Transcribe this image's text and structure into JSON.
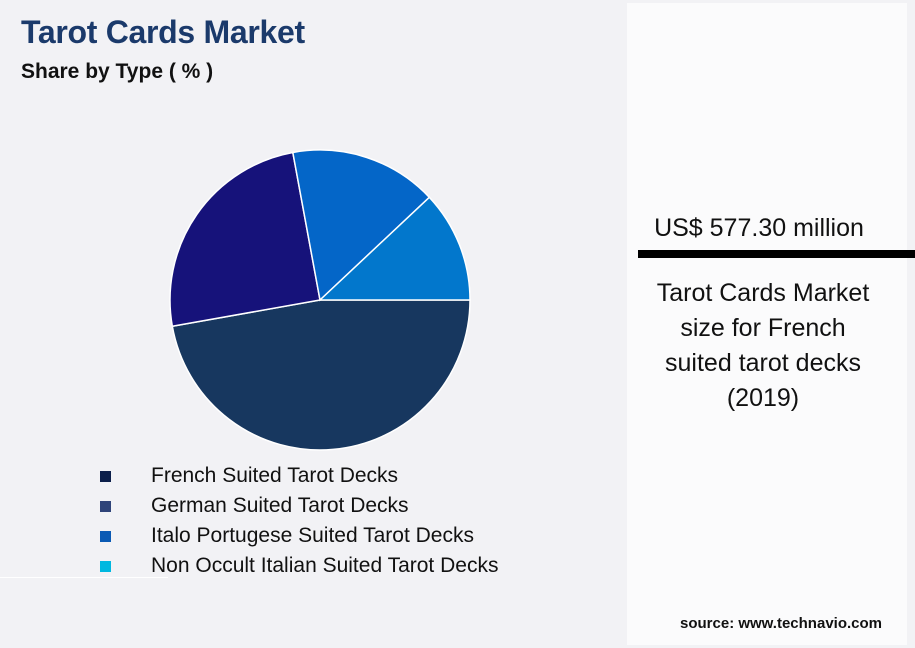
{
  "header": {
    "title": "Tarot Cards Market",
    "subtitle": "Share by Type ( % )"
  },
  "legend": {
    "items": [
      {
        "label": "French Suited Tarot Decks",
        "color": "#0c1f4a"
      },
      {
        "label": "German Suited Tarot Decks",
        "color": "#2f4479"
      },
      {
        "label": "Italo Portugese Suited Tarot Decks",
        "color": "#0a5ab4"
      },
      {
        "label": "Non Occult Italian Suited Tarot Decks",
        "color": "#00b8e0"
      }
    ]
  },
  "kpi": {
    "value": "US$ 577.30 million",
    "description": "Tarot Cards Market\nsize for French\nsuited tarot decks\n(2019)"
  },
  "footer": {
    "source": "source: www.technavio.com"
  },
  "chart_data": {
    "type": "pie",
    "title": "Tarot Cards Market",
    "subtitle": "Share by Type ( % )",
    "categories": [
      "French Suited Tarot Decks",
      "German Suited Tarot Decks",
      "Italo Portugese Suited Tarot Decks",
      "Non Occult Italian Suited Tarot Decks"
    ],
    "values": [
      47.2,
      24.9,
      15.9,
      12.0
    ],
    "slice_colors": [
      "#17375f",
      "#16127a",
      "#0466c8",
      "#0277cc"
    ],
    "legend_colors": [
      "#0c1f4a",
      "#2f4479",
      "#0a5ab4",
      "#00b8e0"
    ],
    "start_angle_deg": 0,
    "direction": "clockwise",
    "legend_position": "bottom",
    "annotation": "US$ 577.30 million — Tarot Cards Market size for French suited tarot decks (2019)"
  }
}
